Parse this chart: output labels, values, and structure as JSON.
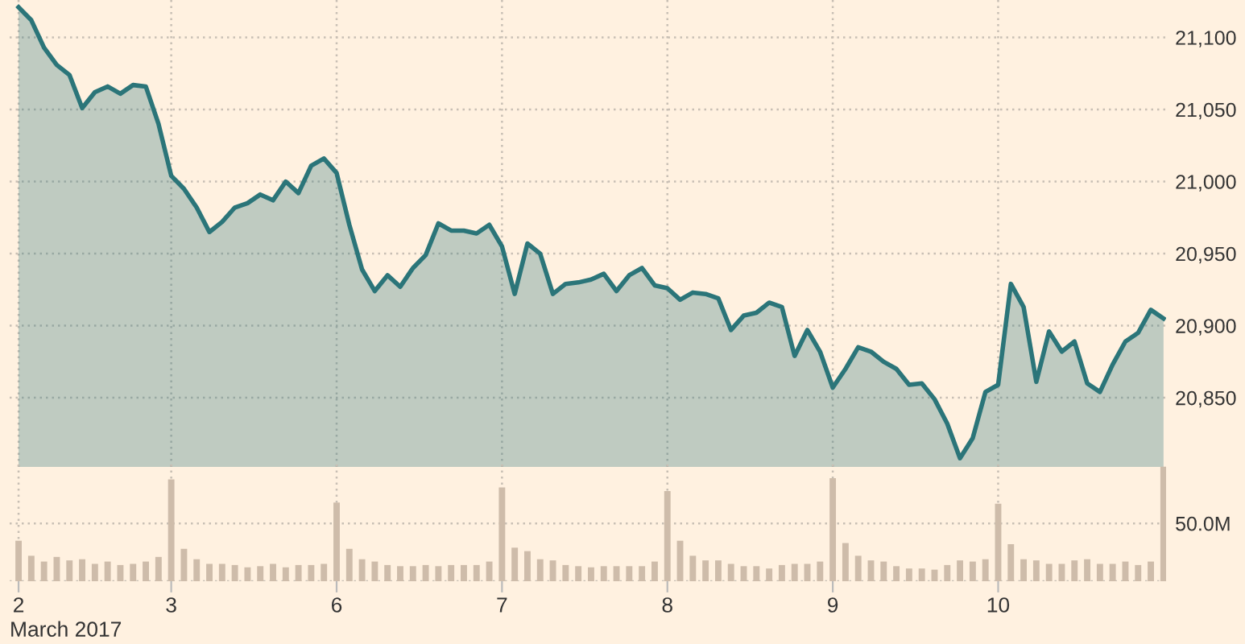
{
  "chart_data": [
    {
      "type": "area",
      "categories": [
        "2",
        null,
        null,
        null,
        null,
        null,
        null,
        null,
        null,
        null,
        null,
        null,
        "3",
        null,
        null,
        null,
        null,
        null,
        null,
        null,
        null,
        null,
        null,
        null,
        null,
        "6",
        null,
        null,
        null,
        null,
        null,
        null,
        null,
        null,
        null,
        null,
        null,
        null,
        "7",
        null,
        null,
        null,
        null,
        null,
        null,
        null,
        null,
        null,
        null,
        null,
        null,
        "8",
        null,
        null,
        null,
        null,
        null,
        null,
        null,
        null,
        null,
        null,
        null,
        null,
        "9",
        null,
        null,
        null,
        null,
        null,
        null,
        null,
        null,
        null,
        null,
        null,
        null,
        "10",
        null,
        null,
        null,
        null,
        null,
        null,
        null,
        null,
        null,
        null,
        null,
        null,
        null
      ],
      "series": [
        {
          "color": "#2b7579",
          "values": [
            21121,
            21112,
            21093,
            21081,
            21074,
            21051,
            21062,
            21066,
            21061,
            21067,
            21066,
            21040,
            21004,
            20995,
            20982,
            20965,
            20972,
            20982,
            20985,
            20991,
            20987,
            21000,
            20992,
            21011,
            21016,
            21006,
            20970,
            20939,
            20924,
            20935,
            20927,
            20940,
            20949,
            20971,
            20966,
            20966,
            20964,
            20970,
            20955,
            20922,
            20957,
            20950,
            20922,
            20929,
            20930,
            20932,
            20936,
            20924,
            20935,
            20940,
            20928,
            20926,
            20918,
            20923,
            20922,
            20919,
            20897,
            20907,
            20909,
            20916,
            20913,
            20879,
            20897,
            20882,
            20857,
            20870,
            20885,
            20882,
            20875,
            20870,
            20859,
            20860,
            20849,
            20832,
            20808,
            20822,
            20854,
            20859,
            20929,
            20913,
            20861,
            20896,
            20882,
            20889,
            20860,
            20854,
            20873,
            20889,
            20895,
            20911,
            20905
          ]
        }
      ],
      "ylim": [
        20802,
        21126
      ],
      "yticks": [
        {
          "value": 20850,
          "label": "20,850"
        },
        {
          "value": 20900,
          "label": "20,900"
        },
        {
          "value": 20950,
          "label": "20,950"
        },
        {
          "value": 21000,
          "label": "21,000"
        },
        {
          "value": 21050,
          "label": "21,050"
        },
        {
          "value": 21100,
          "label": "21,100"
        }
      ],
      "grid": true,
      "tick_labels": "y",
      "legend": false
    },
    {
      "type": "bar",
      "xlabel": "March 2017",
      "categories": [
        "2",
        null,
        null,
        null,
        null,
        null,
        null,
        null,
        null,
        null,
        null,
        null,
        "3",
        null,
        null,
        null,
        null,
        null,
        null,
        null,
        null,
        null,
        null,
        null,
        null,
        "6",
        null,
        null,
        null,
        null,
        null,
        null,
        null,
        null,
        null,
        null,
        null,
        null,
        "7",
        null,
        null,
        null,
        null,
        null,
        null,
        null,
        null,
        null,
        null,
        null,
        null,
        "8",
        null,
        null,
        null,
        null,
        null,
        null,
        null,
        null,
        null,
        null,
        null,
        null,
        "9",
        null,
        null,
        null,
        null,
        null,
        null,
        null,
        null,
        null,
        null,
        null,
        null,
        "10",
        null,
        null,
        null,
        null,
        null,
        null,
        null,
        null,
        null,
        null,
        null,
        null,
        null
      ],
      "series": [
        {
          "color": "#cebcaa",
          "values": [
            35,
            22,
            17,
            21,
            18,
            19,
            15,
            17,
            14,
            15,
            17,
            21,
            88,
            28,
            19,
            15,
            15,
            14,
            12,
            13,
            15,
            12,
            14,
            14,
            15,
            68,
            28,
            19,
            17,
            14,
            13,
            13,
            14,
            13,
            14,
            14,
            14,
            17,
            81,
            29,
            26,
            19,
            18,
            14,
            13,
            12,
            13,
            13,
            13,
            13,
            17,
            78,
            35,
            22,
            18,
            18,
            15,
            13,
            13,
            11,
            14,
            15,
            15,
            17,
            89,
            33,
            22,
            18,
            17,
            13,
            11,
            11,
            10,
            14,
            18,
            17,
            19,
            67,
            32,
            19,
            18,
            15,
            15,
            18,
            19,
            15,
            15,
            17,
            14,
            17,
            99
          ]
        }
      ],
      "ylim": [
        0,
        103
      ],
      "yticks": [
        {
          "value": 0,
          "label": null
        },
        {
          "value": 50,
          "label": "50.0M"
        }
      ],
      "grid": true,
      "legend": false
    }
  ]
}
